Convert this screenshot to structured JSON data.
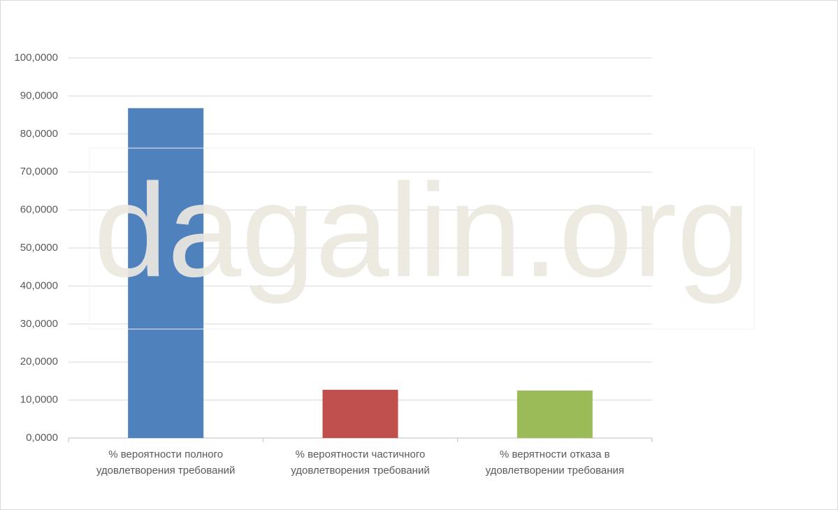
{
  "chart_data": {
    "type": "bar",
    "categories": [
      "% вероятности полного удовлетворения требований",
      "% вероятности частичного удовлетворения требований",
      "% верятности отказа в удовлетворении требования"
    ],
    "values": [
      86.8,
      12.7,
      12.5
    ],
    "colors": [
      "#4f81bd",
      "#c0504d",
      "#9bbb59"
    ],
    "ylim": [
      0,
      100
    ],
    "yticks": [
      {
        "value": 0,
        "label": "0,0000"
      },
      {
        "value": 10,
        "label": "10,0000"
      },
      {
        "value": 20,
        "label": "20,0000"
      },
      {
        "value": 30,
        "label": "30,0000"
      },
      {
        "value": 40,
        "label": "40,0000"
      },
      {
        "value": 50,
        "label": "50,0000"
      },
      {
        "value": 60,
        "label": "60,0000"
      },
      {
        "value": 70,
        "label": "70,0000"
      },
      {
        "value": 80,
        "label": "80,0000"
      },
      {
        "value": 90,
        "label": "90,0000"
      },
      {
        "value": 100,
        "label": "100,0000"
      }
    ],
    "grid": true,
    "watermark": "dagalin.org"
  }
}
